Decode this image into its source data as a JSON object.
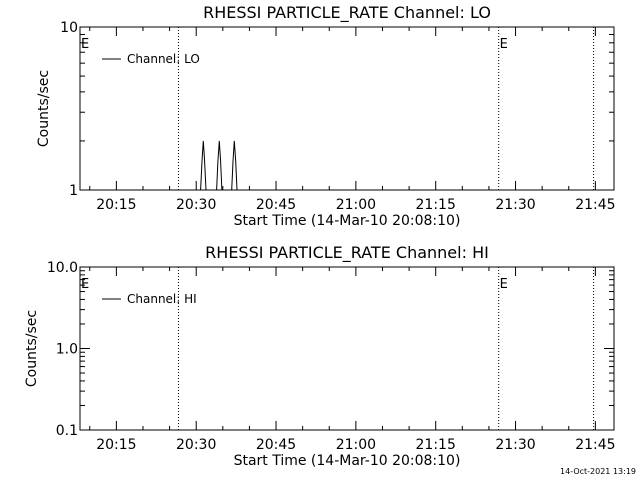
{
  "footer_timestamp": "14-Oct-2021 13:19",
  "colors": {
    "background": "#ffffff",
    "foreground": "#000000"
  },
  "chart_data": [
    {
      "type": "line",
      "title": "RHESSI PARTICLE_RATE Channel: LO",
      "xlabel": "Start Time (14-Mar-10 20:08:10)",
      "ylabel": "Counts/sec",
      "yscale": "log",
      "ylim": [
        1,
        10
      ],
      "yticks": [
        1,
        10
      ],
      "ytick_labels": [
        "1",
        "10"
      ],
      "xlim": [
        "20:08:10",
        "21:48:30"
      ],
      "xticks": [
        "20:15",
        "20:30",
        "20:45",
        "21:00",
        "21:15",
        "21:30",
        "21:45"
      ],
      "grid": false,
      "legend": {
        "entries": [
          "Channel: LO"
        ],
        "placement": "top-left"
      },
      "event_lines": [
        {
          "time": "20:26:40",
          "label": "E"
        },
        {
          "time": "21:26:50",
          "label": "E"
        },
        {
          "time": "21:44:40",
          "label": ""
        }
      ],
      "event_line_labels": [
        "E",
        "E"
      ],
      "series": [
        {
          "name": "Channel: LO",
          "x": [
            "20:08:10",
            "20:30:50",
            "20:31:05",
            "20:31:20",
            "20:31:35",
            "20:31:50",
            "20:33:50",
            "20:34:05",
            "20:34:20",
            "20:34:35",
            "20:34:50",
            "20:36:40",
            "20:36:55",
            "20:37:10",
            "20:37:25",
            "20:37:40",
            "21:48:30"
          ],
          "y": [
            1,
            1,
            1.5,
            2,
            1.5,
            1,
            1,
            1.5,
            2,
            1.5,
            1,
            1,
            1.5,
            2,
            1.5,
            1,
            1
          ]
        }
      ]
    },
    {
      "type": "line",
      "title": "RHESSI PARTICLE_RATE Channel: HI",
      "xlabel": "Start Time (14-Mar-10 20:08:10)",
      "ylabel": "Counts/sec",
      "yscale": "log",
      "ylim": [
        0.1,
        10
      ],
      "yticks": [
        0.1,
        1,
        10
      ],
      "ytick_labels": [
        "0.1",
        "1.0",
        "10.0"
      ],
      "xlim": [
        "20:08:10",
        "21:48:30"
      ],
      "xticks": [
        "20:15",
        "20:30",
        "20:45",
        "21:00",
        "21:15",
        "21:30",
        "21:45"
      ],
      "grid": false,
      "legend": {
        "entries": [
          "Channel: HI"
        ],
        "placement": "top-left"
      },
      "event_lines": [
        {
          "time": "20:26:40",
          "label": "E"
        },
        {
          "time": "21:26:50",
          "label": "E"
        },
        {
          "time": "21:44:40",
          "label": ""
        }
      ],
      "event_line_labels": [
        "E",
        "E"
      ],
      "series": [
        {
          "name": "Channel: HI",
          "x": [],
          "y": []
        }
      ]
    }
  ]
}
